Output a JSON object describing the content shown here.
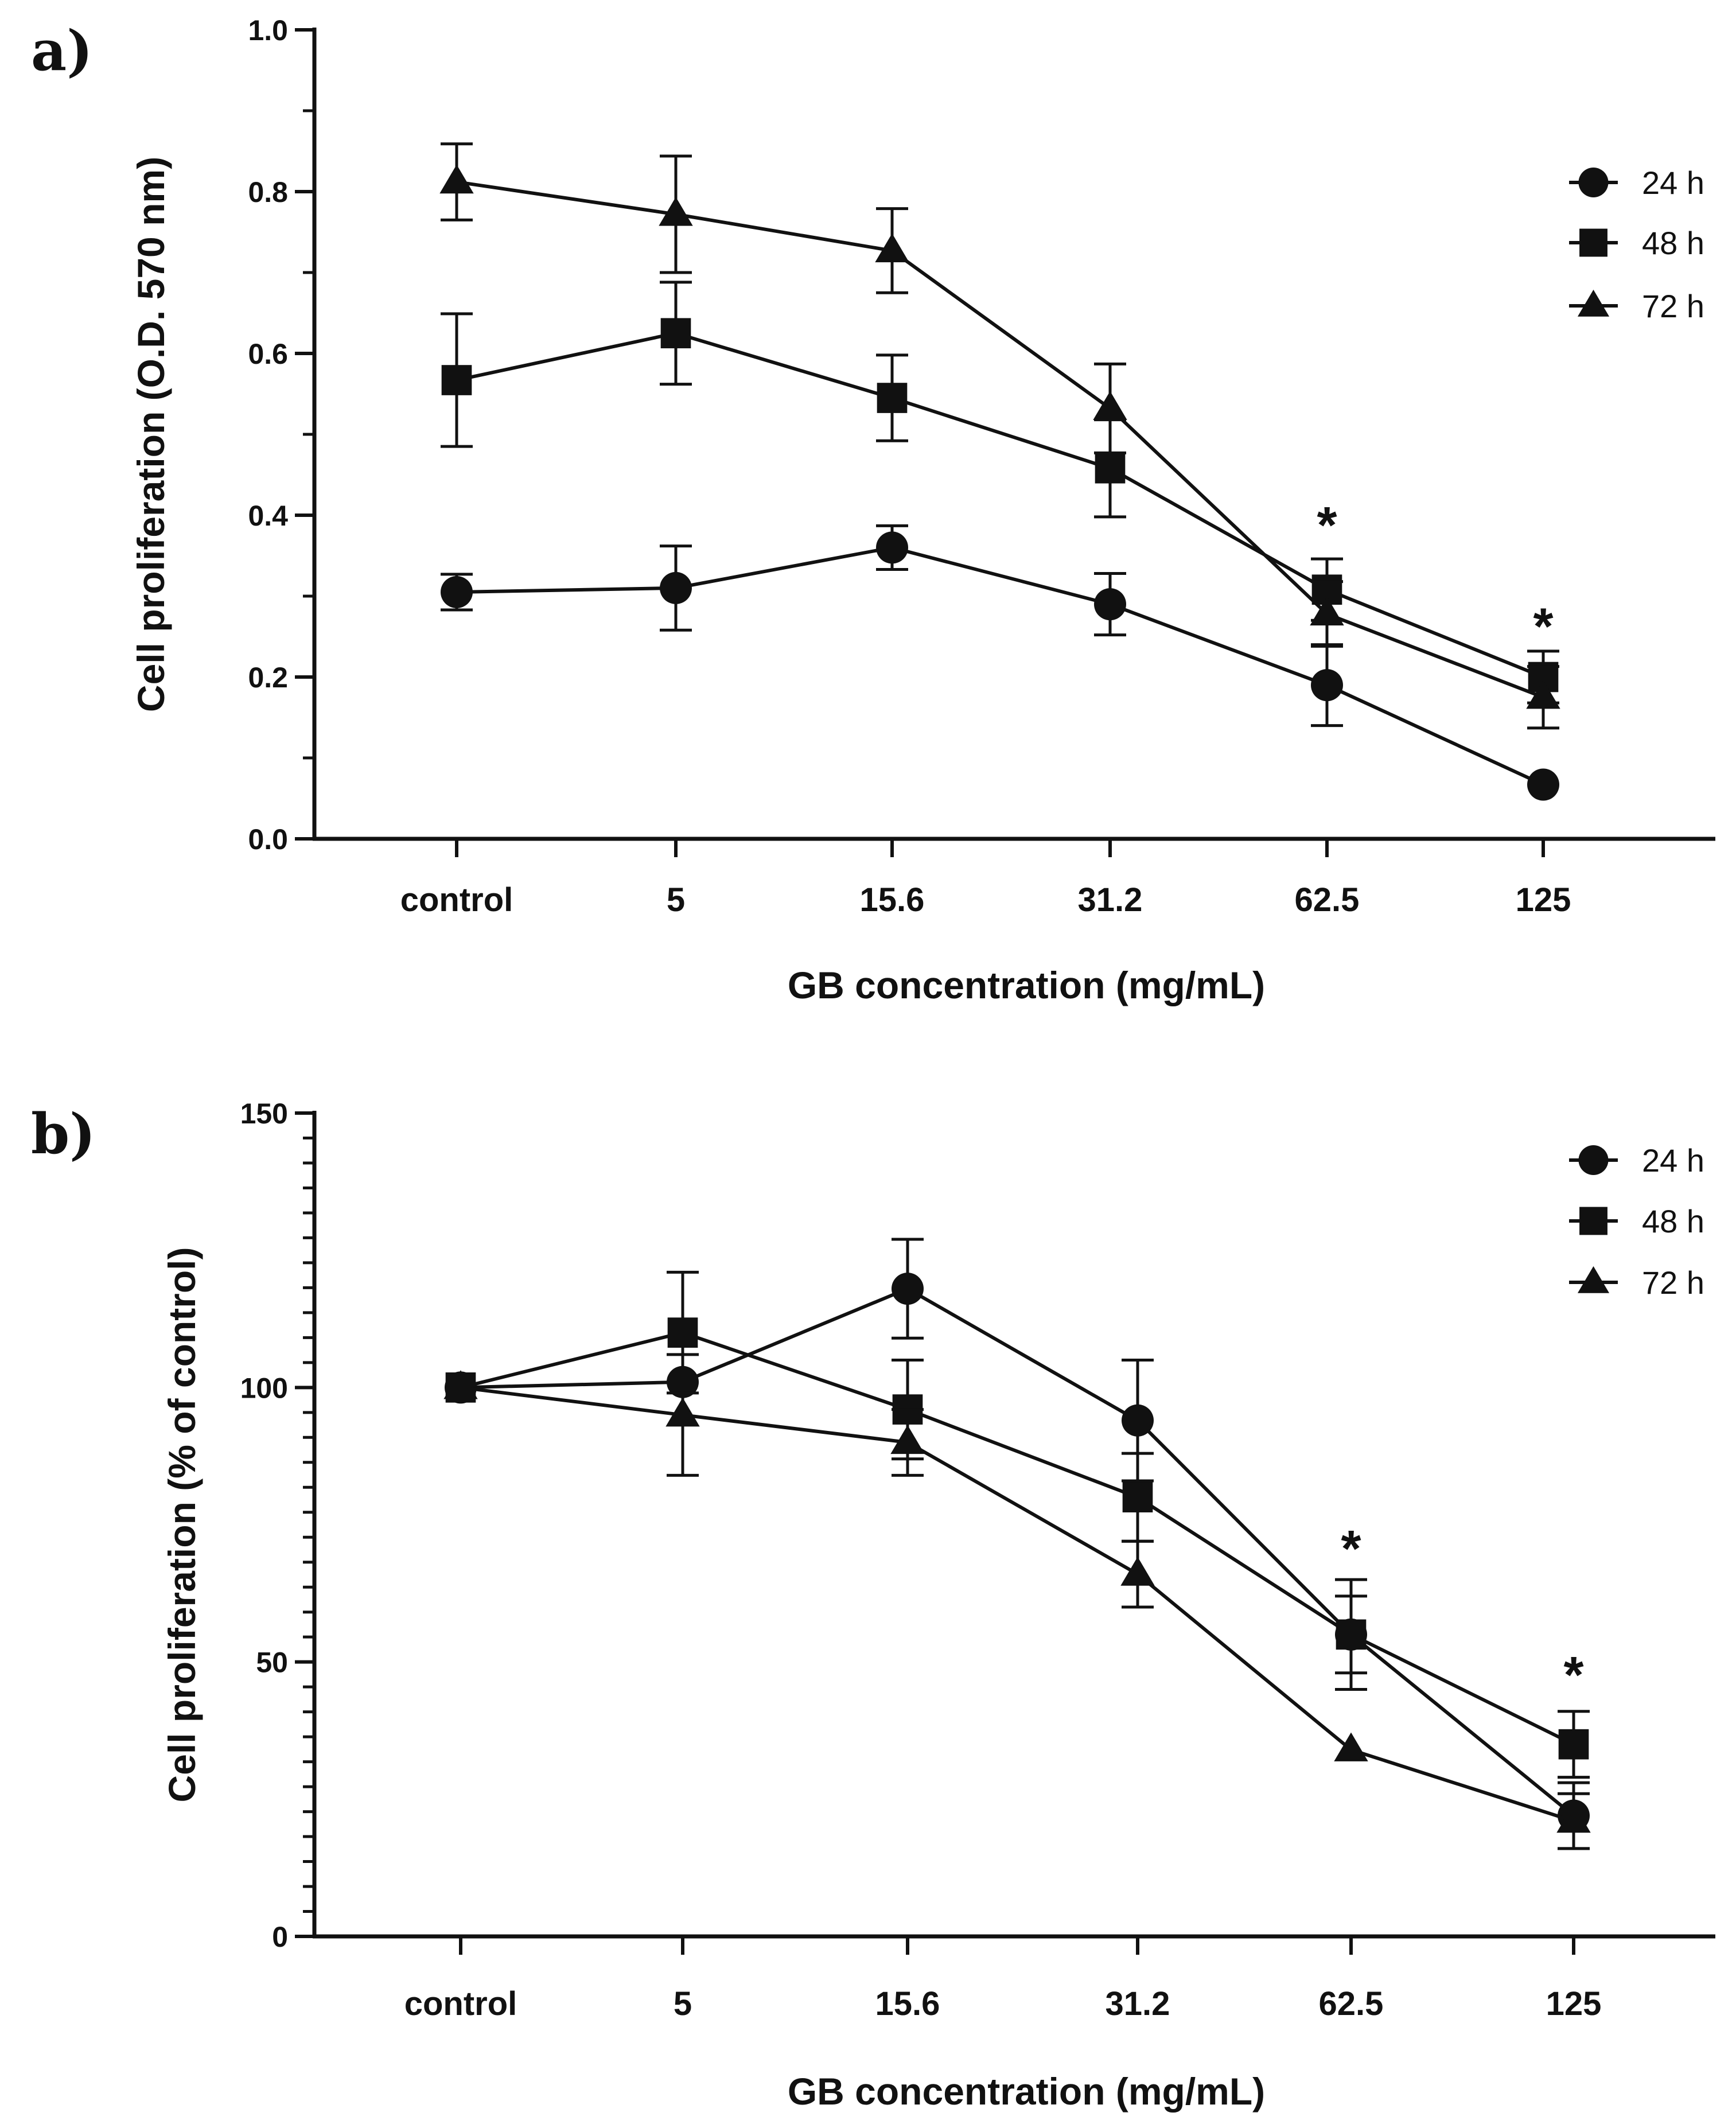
{
  "colors": {
    "ink": "#111111",
    "background": "#ffffff"
  },
  "chart_data": [
    {
      "panel": "a)",
      "type": "line",
      "xlabel": "GB concentration (mg/mL)",
      "ylabel": "Cell proliferation (O.D. 570 nm)",
      "ylim": [
        0,
        1.0
      ],
      "categories": [
        "control",
        "5",
        "15.6",
        "31.2",
        "62.5",
        "125"
      ],
      "y_ticks": [
        "0.0",
        "0.2",
        "0.4",
        "0.6",
        "0.8",
        "1.0"
      ],
      "y_tick_values": [
        0,
        0.2,
        0.4,
        0.6,
        0.8,
        1.0
      ],
      "legend_position": "top-right",
      "series": [
        {
          "name": "24 h",
          "marker": "circle",
          "values": [
            0.305,
            0.31,
            0.36,
            0.29,
            0.19,
            0.067
          ],
          "errors": [
            0.022,
            0.052,
            0.027,
            0.038,
            0.05,
            0.0
          ]
        },
        {
          "name": "48 h",
          "marker": "square",
          "values": [
            0.567,
            0.625,
            0.545,
            0.458,
            0.308,
            0.2
          ],
          "errors": [
            0.082,
            0.063,
            0.053,
            0.06,
            0.038,
            0.032
          ]
        },
        {
          "name": "72 h",
          "marker": "triangle",
          "values": [
            0.812,
            0.772,
            0.727,
            0.532,
            0.278,
            0.175
          ],
          "errors": [
            0.047,
            0.072,
            0.052,
            0.055,
            0.04,
            0.038
          ]
        }
      ],
      "significance": [
        {
          "category": "62.5",
          "label": "*",
          "value": 0.39
        },
        {
          "category": "125",
          "label": "*",
          "value": 0.265
        }
      ]
    },
    {
      "panel": "b)",
      "type": "line",
      "xlabel": "GB concentration (mg/mL)",
      "ylabel": "Cell proliferation (% of control)",
      "ylim": [
        0,
        150
      ],
      "categories": [
        "control",
        "5",
        "15.6",
        "31.2",
        "62.5",
        "125"
      ],
      "y_ticks": [
        "0",
        "50",
        "100",
        "150"
      ],
      "y_tick_values": [
        0,
        50,
        100,
        150
      ],
      "legend_position": "top-right",
      "series": [
        {
          "name": "24 h",
          "marker": "circle",
          "values": [
            100,
            101,
            118,
            94,
            55,
            22
          ],
          "errors": [
            0,
            0,
            9,
            11,
            10,
            6
          ]
        },
        {
          "name": "48 h",
          "marker": "square",
          "values": [
            100,
            110,
            96,
            80,
            55,
            35
          ],
          "errors": [
            0,
            11,
            9,
            8,
            7,
            6
          ]
        },
        {
          "name": "72 h",
          "marker": "triangle",
          "values": [
            100,
            95,
            90,
            66,
            34,
            21
          ],
          "errors": [
            0,
            11,
            6,
            6,
            0,
            5
          ]
        }
      ],
      "significance": [
        {
          "category": "62.5",
          "label": "*",
          "value": 71
        },
        {
          "category": "125",
          "label": "*",
          "value": 48
        }
      ]
    }
  ]
}
